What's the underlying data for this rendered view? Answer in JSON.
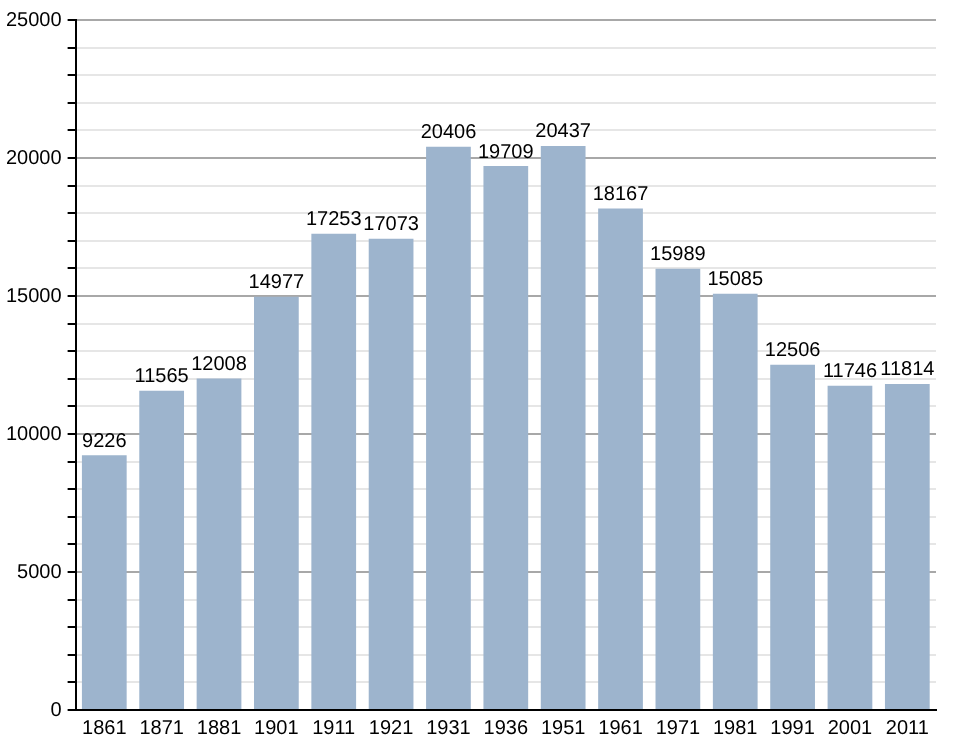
{
  "chart_data": {
    "type": "bar",
    "categories": [
      "1861",
      "1871",
      "1881",
      "1901",
      "1911",
      "1921",
      "1931",
      "1936",
      "1951",
      "1961",
      "1971",
      "1981",
      "1991",
      "2001",
      "2011"
    ],
    "values": [
      9226,
      11565,
      12008,
      14977,
      17253,
      17073,
      20406,
      19709,
      20437,
      18167,
      15989,
      15085,
      12506,
      11746,
      11814
    ],
    "color": "#9db4cd",
    "ylim": [
      0,
      25000
    ],
    "yticks": [
      0,
      {
        "value": 1000,
        "label": null
      },
      {
        "value": 2000,
        "label": null
      },
      {
        "value": 3000,
        "label": null
      },
      {
        "value": 4000,
        "label": null
      },
      5000,
      {
        "value": 6000,
        "label": null
      },
      {
        "value": 7000,
        "label": null
      },
      {
        "value": 8000,
        "label": null
      },
      {
        "value": 9000,
        "label": null
      },
      10000,
      {
        "value": 11000,
        "label": null
      },
      {
        "value": 12000,
        "label": null
      },
      {
        "value": 13000,
        "label": null
      },
      {
        "value": 14000,
        "label": null
      },
      15000,
      {
        "value": 16000,
        "label": null
      },
      {
        "value": 17000,
        "label": null
      },
      {
        "value": 18000,
        "label": null
      },
      {
        "value": 19000,
        "label": null
      },
      20000,
      {
        "value": 21000,
        "label": null
      },
      {
        "value": 22000,
        "label": null
      },
      {
        "value": 23000,
        "label": null
      },
      {
        "value": 24000,
        "label": null
      },
      25000
    ],
    "grid": "y",
    "data_labels": true
  }
}
